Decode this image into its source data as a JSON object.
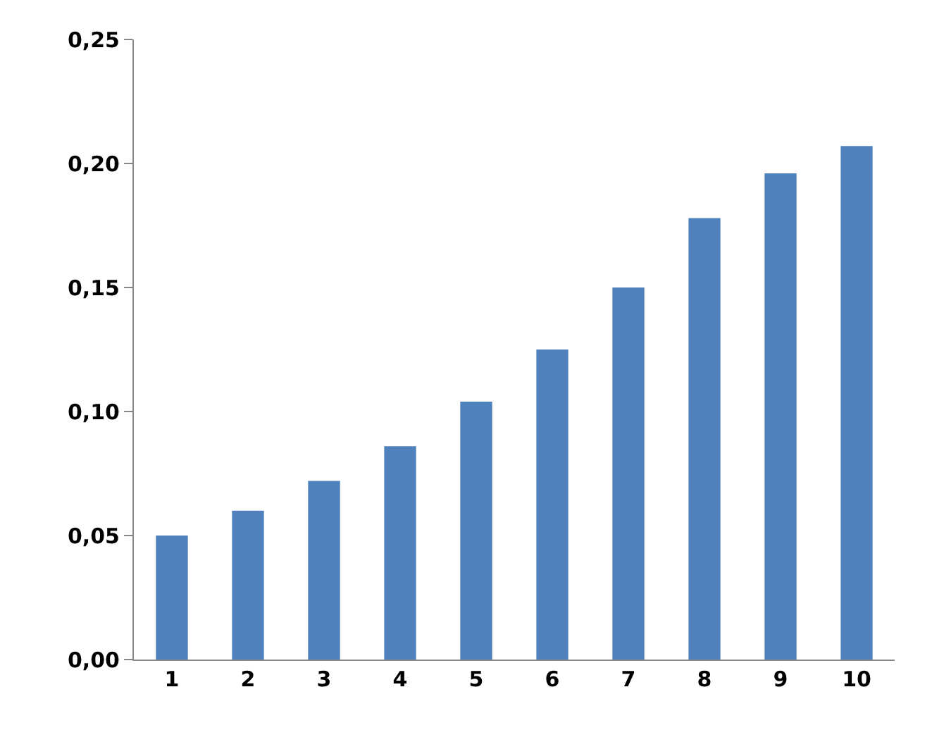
{
  "chart_data": {
    "type": "bar",
    "categories": [
      "1",
      "2",
      "3",
      "4",
      "5",
      "6",
      "7",
      "8",
      "9",
      "10"
    ],
    "values": [
      0.05,
      0.06,
      0.072,
      0.086,
      0.104,
      0.125,
      0.15,
      0.178,
      0.196,
      0.207
    ],
    "color": "#4f81bd",
    "ylim": [
      0,
      0.25
    ],
    "yticks": [
      {
        "value": 0,
        "label": "0,00"
      },
      {
        "value": 0.05,
        "label": "0,05"
      },
      {
        "value": 0.1,
        "label": "0,10"
      },
      {
        "value": 0.15,
        "label": "0,15"
      },
      {
        "value": 0.2,
        "label": "0,20"
      },
      {
        "value": 0.25,
        "label": "0,25"
      }
    ],
    "grid": false
  }
}
